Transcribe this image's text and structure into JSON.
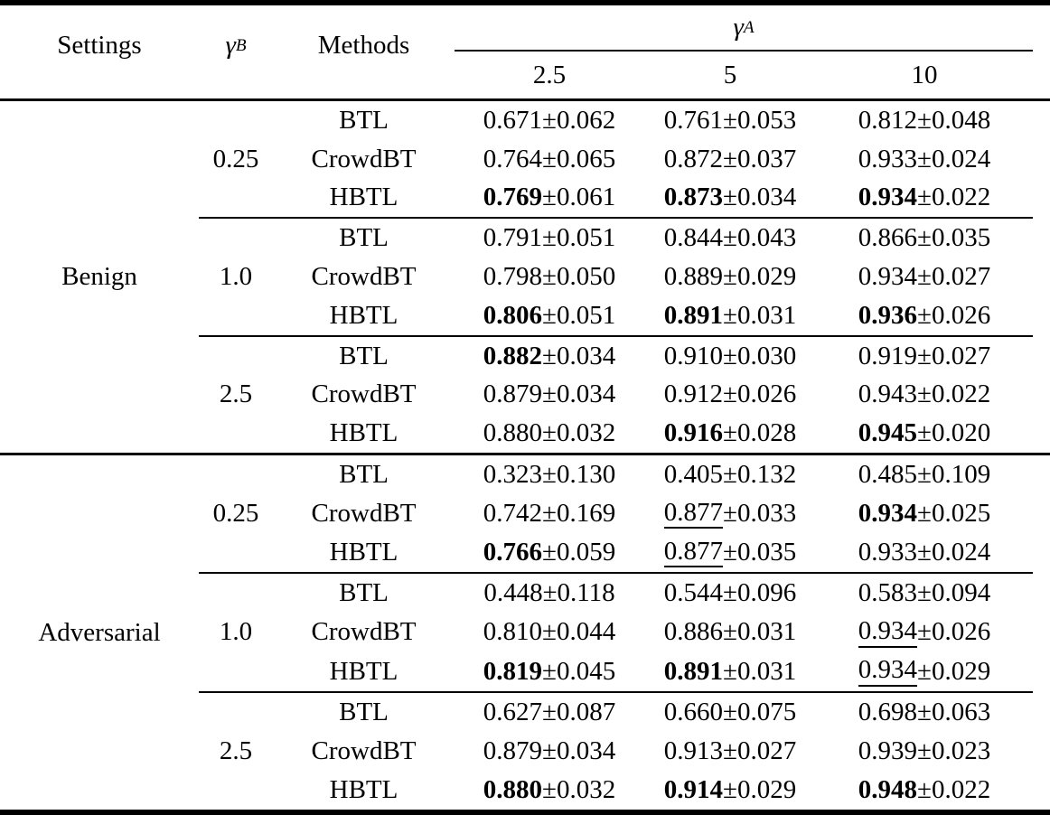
{
  "colors": {
    "text": "#000000",
    "background": "#ffffff",
    "rule": "#000000"
  },
  "table": {
    "plus_minus": "±",
    "headers": {
      "settings": "Settings",
      "gamma": "γ",
      "gamma_b_sub": "B",
      "gamma_a_sub": "A",
      "methods": "Methods"
    },
    "gamma_a_values": [
      "2.5",
      "5",
      "10"
    ],
    "sections": [
      {
        "setting": "Benign",
        "groups": [
          {
            "gamma_b": "0.25",
            "rows": [
              {
                "method": "BTL",
                "cells": [
                  {
                    "mean": "0.671",
                    "std": "0.062"
                  },
                  {
                    "mean": "0.761",
                    "std": "0.053"
                  },
                  {
                    "mean": "0.812",
                    "std": "0.048"
                  }
                ]
              },
              {
                "method": "CrowdBT",
                "cells": [
                  {
                    "mean": "0.764",
                    "std": "0.065"
                  },
                  {
                    "mean": "0.872",
                    "std": "0.037"
                  },
                  {
                    "mean": "0.933",
                    "std": "0.024"
                  }
                ]
              },
              {
                "method": "HBTL",
                "cells": [
                  {
                    "mean": "0.769",
                    "std": "0.061",
                    "bold": true
                  },
                  {
                    "mean": "0.873",
                    "std": "0.034",
                    "bold": true
                  },
                  {
                    "mean": "0.934",
                    "std": "0.022",
                    "bold": true
                  }
                ]
              }
            ]
          },
          {
            "gamma_b": "1.0",
            "rows": [
              {
                "method": "BTL",
                "cells": [
                  {
                    "mean": "0.791",
                    "std": "0.051"
                  },
                  {
                    "mean": "0.844",
                    "std": "0.043"
                  },
                  {
                    "mean": "0.866",
                    "std": "0.035"
                  }
                ]
              },
              {
                "method": "CrowdBT",
                "cells": [
                  {
                    "mean": "0.798",
                    "std": "0.050"
                  },
                  {
                    "mean": "0.889",
                    "std": "0.029"
                  },
                  {
                    "mean": "0.934",
                    "std": "0.027"
                  }
                ]
              },
              {
                "method": "HBTL",
                "cells": [
                  {
                    "mean": "0.806",
                    "std": "0.051",
                    "bold": true
                  },
                  {
                    "mean": "0.891",
                    "std": "0.031",
                    "bold": true
                  },
                  {
                    "mean": "0.936",
                    "std": "0.026",
                    "bold": true
                  }
                ]
              }
            ]
          },
          {
            "gamma_b": "2.5",
            "rows": [
              {
                "method": "BTL",
                "cells": [
                  {
                    "mean": "0.882",
                    "std": "0.034",
                    "bold": true
                  },
                  {
                    "mean": "0.910",
                    "std": "0.030"
                  },
                  {
                    "mean": "0.919",
                    "std": "0.027"
                  }
                ]
              },
              {
                "method": "CrowdBT",
                "cells": [
                  {
                    "mean": "0.879",
                    "std": "0.034"
                  },
                  {
                    "mean": "0.912",
                    "std": "0.026"
                  },
                  {
                    "mean": "0.943",
                    "std": "0.022"
                  }
                ]
              },
              {
                "method": "HBTL",
                "cells": [
                  {
                    "mean": "0.880",
                    "std": "0.032"
                  },
                  {
                    "mean": "0.916",
                    "std": "0.028",
                    "bold": true
                  },
                  {
                    "mean": "0.945",
                    "std": "0.020",
                    "bold": true
                  }
                ]
              }
            ]
          }
        ]
      },
      {
        "setting": "Adversarial",
        "groups": [
          {
            "gamma_b": "0.25",
            "rows": [
              {
                "method": "BTL",
                "cells": [
                  {
                    "mean": "0.323",
                    "std": "0.130"
                  },
                  {
                    "mean": "0.405",
                    "std": "0.132"
                  },
                  {
                    "mean": "0.485",
                    "std": "0.109"
                  }
                ]
              },
              {
                "method": "CrowdBT",
                "cells": [
                  {
                    "mean": "0.742",
                    "std": "0.169"
                  },
                  {
                    "mean": "0.877",
                    "std": "0.033",
                    "underline": true
                  },
                  {
                    "mean": "0.934",
                    "std": "0.025",
                    "bold": true
                  }
                ]
              },
              {
                "method": "HBTL",
                "cells": [
                  {
                    "mean": "0.766",
                    "std": "0.059",
                    "bold": true
                  },
                  {
                    "mean": "0.877",
                    "std": "0.035",
                    "underline": true
                  },
                  {
                    "mean": "0.933",
                    "std": "0.024"
                  }
                ]
              }
            ]
          },
          {
            "gamma_b": "1.0",
            "rows": [
              {
                "method": "BTL",
                "cells": [
                  {
                    "mean": "0.448",
                    "std": "0.118"
                  },
                  {
                    "mean": "0.544",
                    "std": "0.096"
                  },
                  {
                    "mean": "0.583",
                    "std": "0.094"
                  }
                ]
              },
              {
                "method": "CrowdBT",
                "cells": [
                  {
                    "mean": "0.810",
                    "std": "0.044"
                  },
                  {
                    "mean": "0.886",
                    "std": "0.031"
                  },
                  {
                    "mean": "0.934",
                    "std": "0.026",
                    "underline": true
                  }
                ]
              },
              {
                "method": "HBTL",
                "cells": [
                  {
                    "mean": "0.819",
                    "std": "0.045",
                    "bold": true
                  },
                  {
                    "mean": "0.891",
                    "std": "0.031",
                    "bold": true
                  },
                  {
                    "mean": "0.934",
                    "std": "0.029",
                    "underline": true
                  }
                ]
              }
            ]
          },
          {
            "gamma_b": "2.5",
            "rows": [
              {
                "method": "BTL",
                "cells": [
                  {
                    "mean": "0.627",
                    "std": "0.087"
                  },
                  {
                    "mean": "0.660",
                    "std": "0.075"
                  },
                  {
                    "mean": "0.698",
                    "std": "0.063"
                  }
                ]
              },
              {
                "method": "CrowdBT",
                "cells": [
                  {
                    "mean": "0.879",
                    "std": "0.034"
                  },
                  {
                    "mean": "0.913",
                    "std": "0.027"
                  },
                  {
                    "mean": "0.939",
                    "std": "0.023"
                  }
                ]
              },
              {
                "method": "HBTL",
                "cells": [
                  {
                    "mean": "0.880",
                    "std": "0.032",
                    "bold": true
                  },
                  {
                    "mean": "0.914",
                    "std": "0.029",
                    "bold": true
                  },
                  {
                    "mean": "0.948",
                    "std": "0.022",
                    "bold": true
                  }
                ]
              }
            ]
          }
        ]
      }
    ]
  }
}
